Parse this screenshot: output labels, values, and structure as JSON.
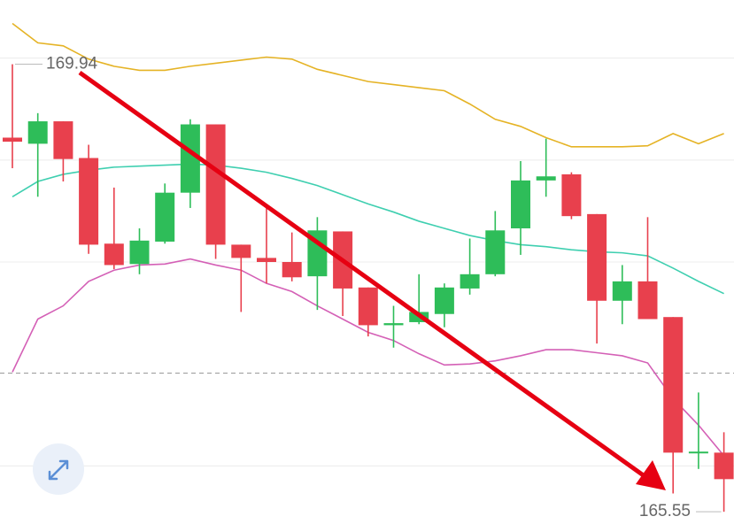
{
  "chart_data": {
    "type": "candlestick",
    "ylim": [
      165.43,
      170.57
    ],
    "grid_lines": [
      166,
      168,
      169,
      170
    ],
    "ref_line": 166.91,
    "up_color": "#2ebd59",
    "down_color": "#e8404d",
    "open": [
      169.22,
      169.16,
      169.38,
      169.02,
      168.18,
      167.98,
      168.2,
      168.68,
      169.35,
      168.17,
      168.04,
      168.0,
      167.86,
      168.3,
      167.75,
      167.38,
      167.41,
      167.49,
      167.74,
      167.88,
      168.33,
      168.8,
      168.86,
      168.47,
      167.62,
      167.81,
      167.46,
      166.13,
      166.13
    ],
    "high": [
      169.94,
      169.46,
      169.38,
      169.15,
      168.73,
      168.33,
      168.77,
      169.4,
      169.35,
      168.17,
      168.53,
      168.29,
      168.44,
      168.3,
      167.75,
      167.57,
      167.88,
      167.79,
      168.23,
      168.5,
      168.99,
      169.21,
      168.88,
      168.47,
      167.97,
      168.44,
      167.46,
      166.72,
      166.33
    ],
    "low": [
      168.92,
      168.64,
      168.79,
      168.08,
      167.93,
      167.88,
      168.18,
      168.53,
      168.03,
      167.51,
      167.79,
      167.81,
      167.53,
      167.47,
      167.27,
      167.16,
      167.39,
      167.36,
      167.68,
      167.86,
      168.07,
      168.64,
      168.42,
      167.2,
      167.39,
      167.44,
      165.73,
      165.97,
      165.55
    ],
    "close": [
      169.18,
      169.38,
      169.01,
      168.17,
      167.97,
      168.21,
      168.68,
      169.35,
      168.17,
      168.04,
      168.0,
      167.85,
      168.31,
      167.74,
      167.38,
      167.4,
      167.51,
      167.75,
      167.88,
      168.31,
      168.8,
      168.84,
      168.45,
      167.62,
      167.81,
      167.44,
      166.13,
      166.14,
      165.87
    ],
    "bands": [
      {
        "color": "#e5b325",
        "values": [
          170.34,
          170.15,
          170.12,
          169.99,
          169.92,
          169.88,
          169.88,
          169.92,
          169.95,
          169.98,
          170.01,
          169.99,
          169.89,
          169.83,
          169.77,
          169.74,
          169.71,
          169.68,
          169.55,
          169.4,
          169.33,
          169.22,
          169.13,
          169.13,
          169.13,
          169.14,
          169.26,
          169.16,
          169.26
        ]
      },
      {
        "color": "#3fcfb0",
        "values": [
          168.64,
          168.79,
          168.86,
          168.9,
          168.93,
          168.94,
          168.95,
          168.96,
          168.95,
          168.92,
          168.88,
          168.82,
          168.75,
          168.66,
          168.57,
          168.49,
          168.4,
          168.33,
          168.26,
          168.21,
          168.17,
          168.15,
          168.12,
          168.1,
          168.09,
          168.06,
          167.94,
          167.81,
          167.69
        ]
      },
      {
        "color": "#d460b6",
        "values": [
          166.92,
          167.44,
          167.57,
          167.81,
          167.92,
          167.97,
          167.98,
          168.03,
          167.97,
          167.92,
          167.79,
          167.71,
          167.57,
          167.44,
          167.31,
          167.23,
          167.1,
          166.99,
          167.0,
          167.03,
          167.08,
          167.14,
          167.14,
          167.11,
          167.08,
          167.01,
          166.66,
          166.4,
          166.1
        ]
      }
    ],
    "high_label": 169.94,
    "low_label": 165.55
  }
}
